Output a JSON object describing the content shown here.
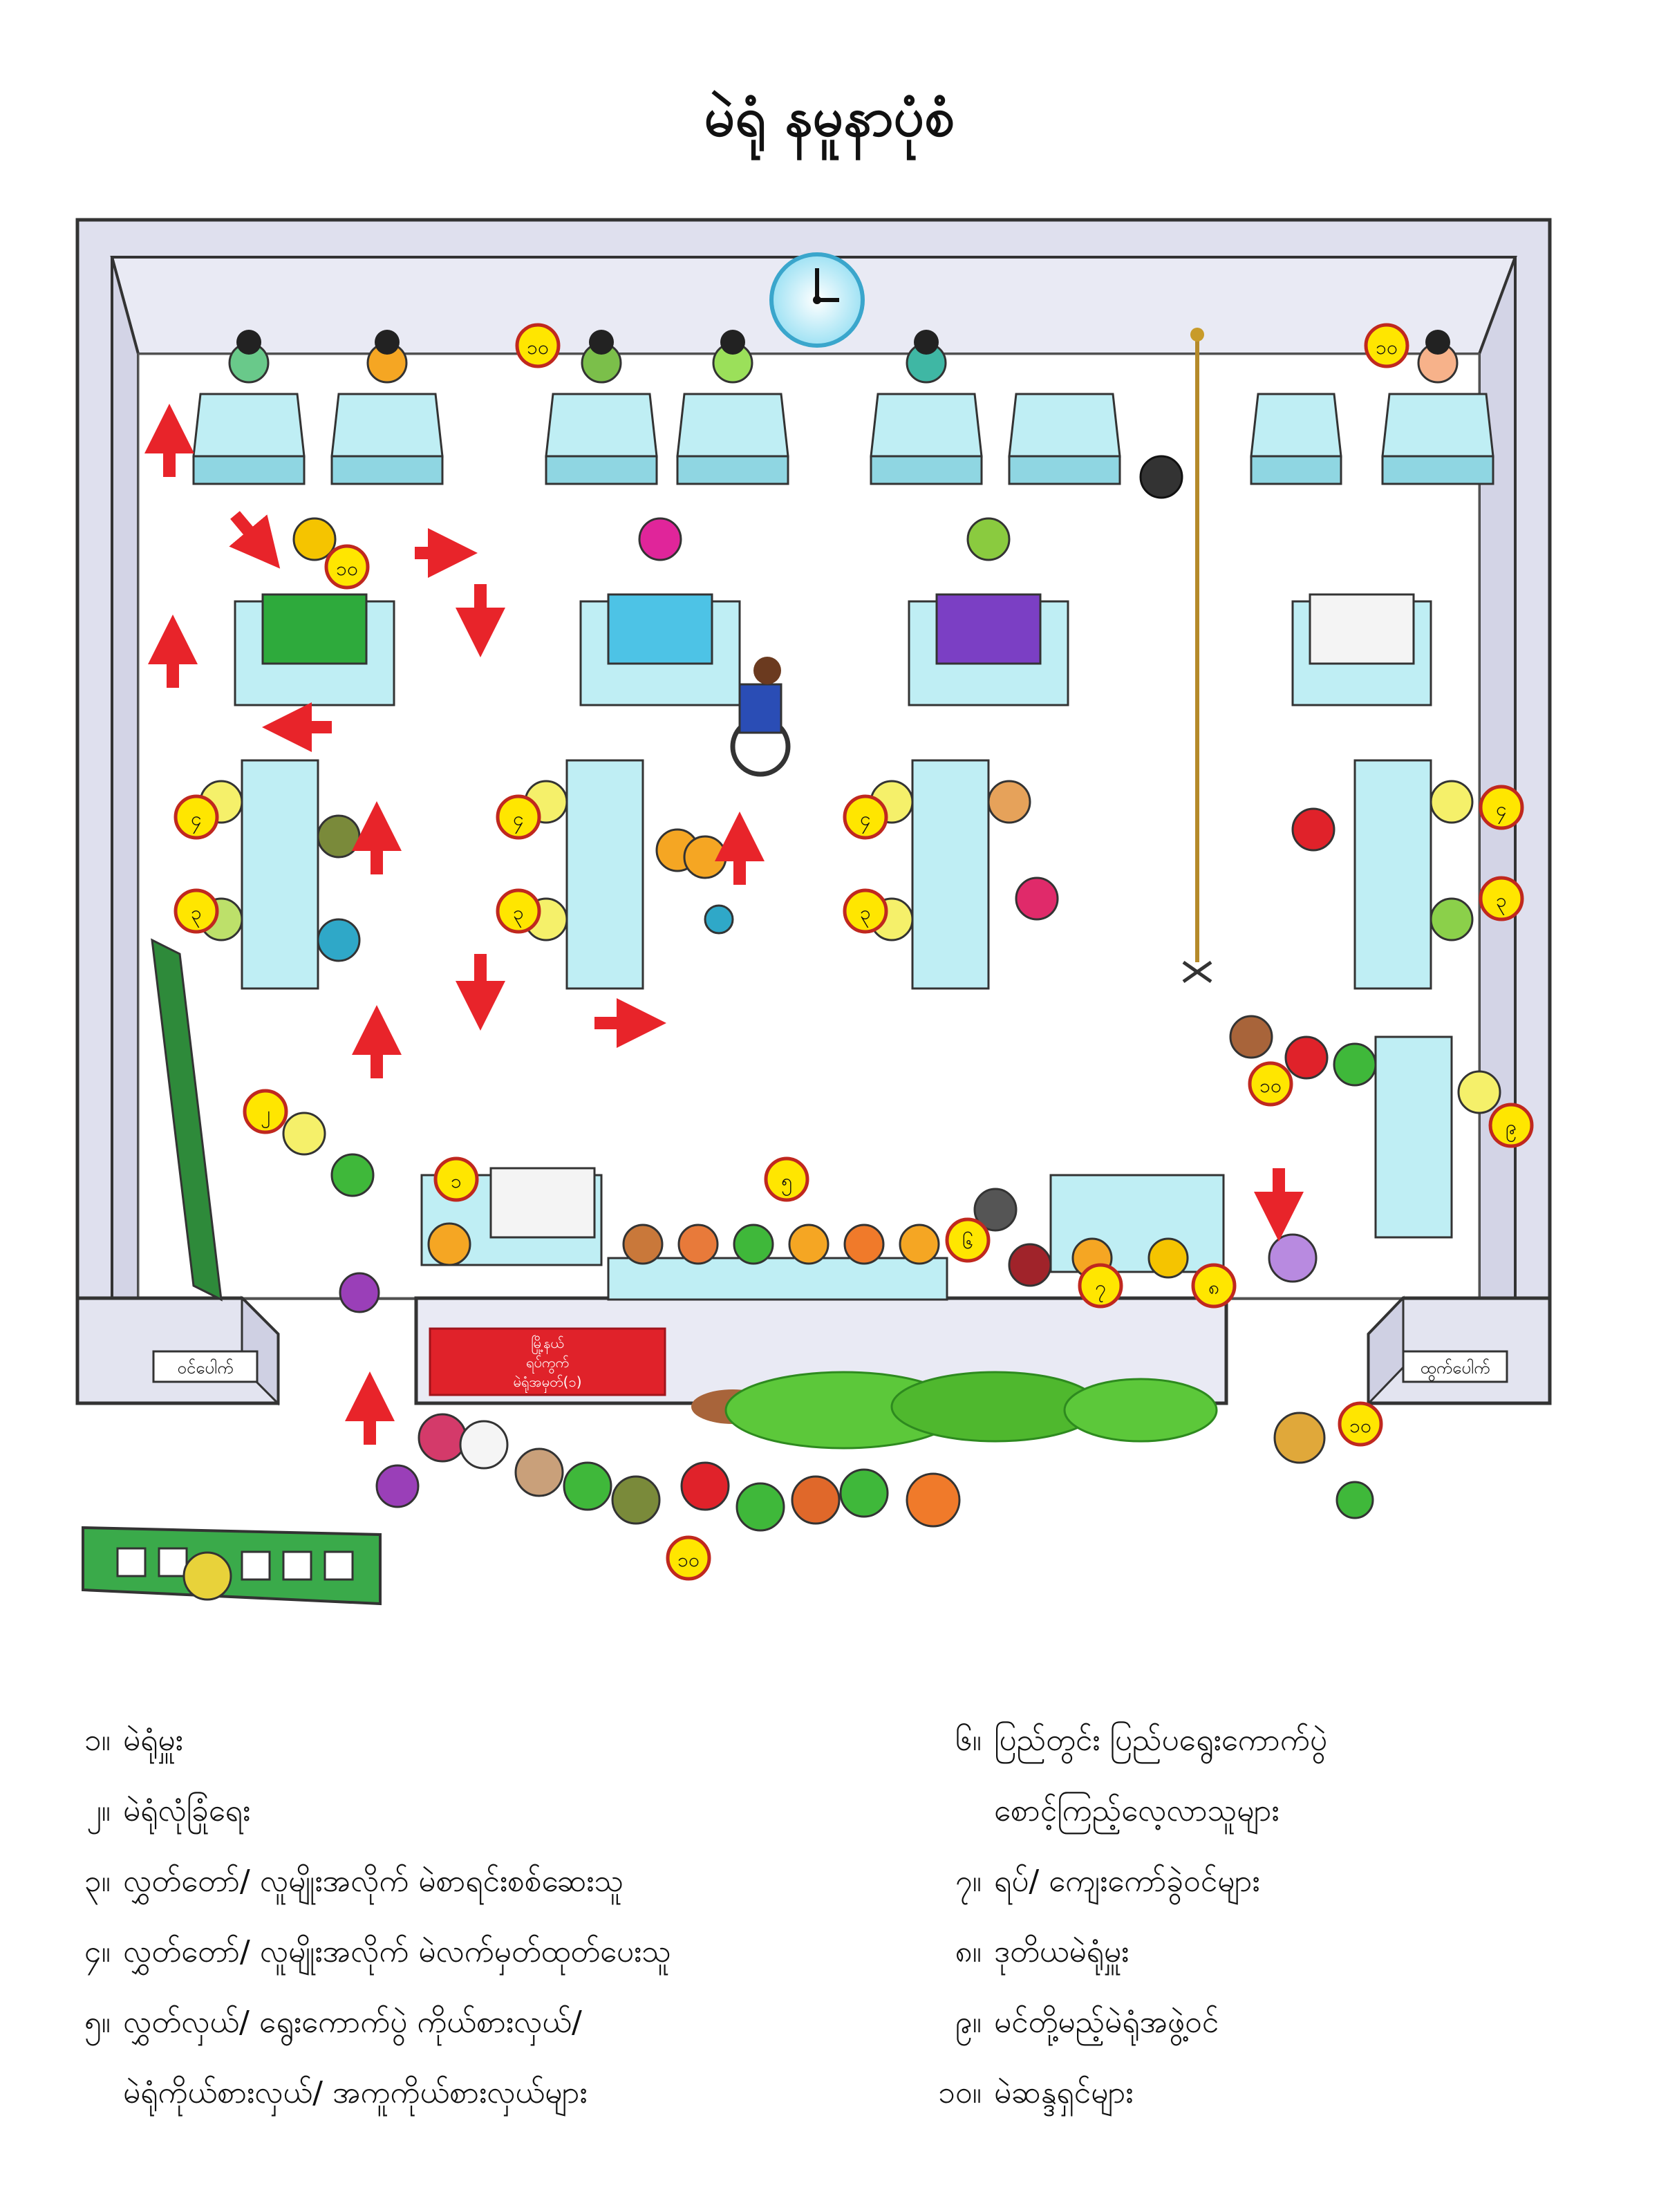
{
  "title": "မဲရုံ နမူနာပုံစံ",
  "room_signs": {
    "entrance": "ဝင်ပေါက်",
    "exit": "ထွက်ပေါက်",
    "board_line1": "မြို့နယ်",
    "board_line2": "ရပ်ကွက်",
    "board_line3": "မဲရုံအမှတ်(၁)"
  },
  "markers": {
    "m1": "၁",
    "m2": "၂",
    "m3": "၃",
    "m4": "၄",
    "m5": "၅",
    "m6": "၆",
    "m7": "၇",
    "m8": "၈",
    "m9": "၉",
    "m10": "၁၀"
  },
  "legend": {
    "left": [
      {
        "num": "၁။",
        "text": "မဲရုံမှူး"
      },
      {
        "num": "၂။",
        "text": "မဲရုံလုံခြုံရေး"
      },
      {
        "num": "၃။",
        "text": "လွှတ်တော်/ လူမျိုးအလိုက် မဲစာရင်းစစ်ဆေးသူ"
      },
      {
        "num": "၄။",
        "text": "လွှတ်တော်/ လူမျိုးအလိုက် မဲလက်မှတ်ထုတ်ပေးသူ"
      },
      {
        "num": "၅။",
        "text": "လွှတ်လှယ်/ ရွေးကောက်ပွဲ ကိုယ်စားလှယ်/"
      },
      {
        "num": "",
        "text": "မဲရုံကိုယ်စားလှယ်/ အကူကိုယ်စားလှယ်များ"
      }
    ],
    "right": [
      {
        "num": "၆။",
        "text": "ပြည်တွင်း ပြည်ပရွေးကောက်ပွဲ"
      },
      {
        "num": "",
        "text": "စောင့်ကြည့်လေ့လာသူများ"
      },
      {
        "num": "၇။",
        "text": "ရပ်/ ကျေးကော်ခွဲဝင်များ"
      },
      {
        "num": "၈။",
        "text": "ဒုတိယမဲရုံမှူး"
      },
      {
        "num": "၉။",
        "text": "မင်တို့မည့်မဲရုံအဖွဲ့ဝင်"
      },
      {
        "num": "၁၀။",
        "text": "မဲဆန္ဒရှင်များ"
      }
    ]
  },
  "colors": {
    "wall": "#dfe0ee",
    "floor": "#ffffff",
    "desk": "#bfeef4",
    "arrow": "#e8242a",
    "marker_fill": "#ffe600",
    "marker_stroke": "#c0281f",
    "board": "#e0222a",
    "plants": "#5cc83a"
  }
}
